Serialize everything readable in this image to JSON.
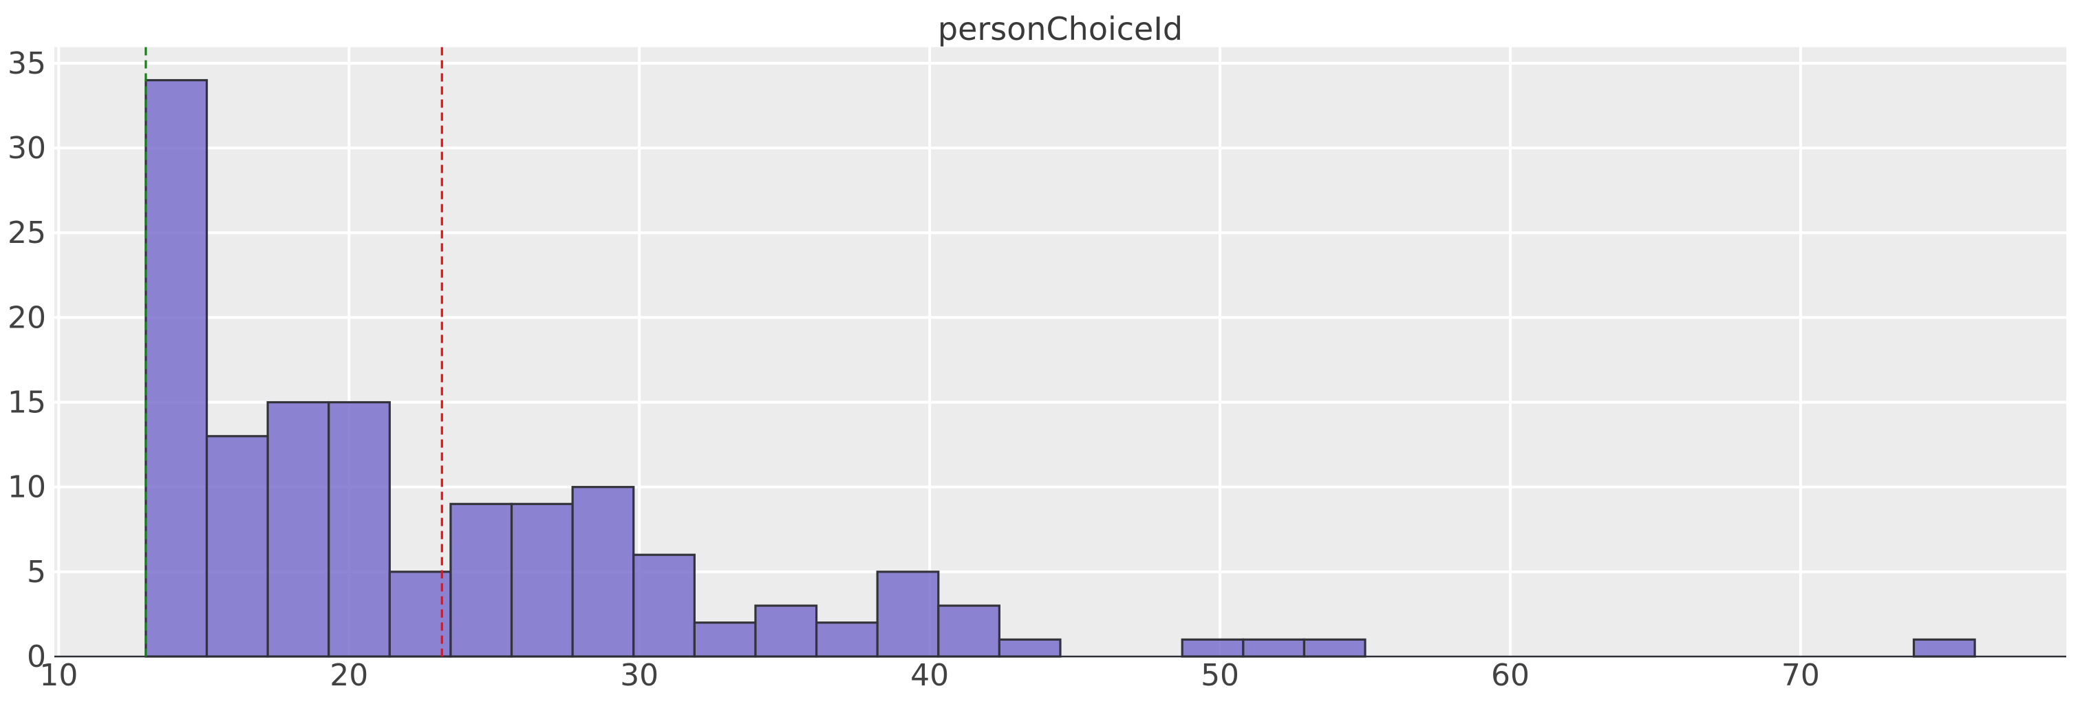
{
  "title": "personChoiceId",
  "chart_data": {
    "type": "bar",
    "subtype": "histogram",
    "title": "personChoiceId",
    "xlabel": "",
    "ylabel": "",
    "bin_start": 13,
    "bin_width": 2.1,
    "num_bins": 30,
    "bin_edges": [
      13.0,
      15.1,
      17.2,
      19.3,
      21.4,
      23.5,
      25.6,
      27.7,
      29.8,
      31.9,
      34.0,
      36.1,
      38.2,
      40.3,
      42.4,
      44.5,
      46.6,
      48.7,
      50.8,
      52.9,
      55.0,
      57.1,
      59.2,
      61.3,
      63.4,
      65.5,
      67.6,
      69.7,
      71.8,
      73.9,
      76.0
    ],
    "counts": [
      34,
      13,
      15,
      15,
      5,
      9,
      9,
      10,
      6,
      2,
      3,
      2,
      5,
      3,
      1,
      0,
      0,
      1,
      1,
      1,
      0,
      0,
      0,
      0,
      0,
      0,
      0,
      0,
      0,
      1
    ],
    "total_count": 136,
    "xlim": [
      9.85,
      79.15
    ],
    "ylim": [
      0,
      35.95
    ],
    "xticks": [
      10,
      20,
      30,
      40,
      50,
      60,
      70
    ],
    "yticks": [
      0,
      5,
      10,
      15,
      20,
      25,
      30,
      35
    ],
    "grid": true,
    "legend": null,
    "vlines": [
      {
        "name": "min-line",
        "x": 13.0,
        "color": "#1a7d1a",
        "style": "dashed"
      },
      {
        "name": "mean-line",
        "x": 23.2,
        "color": "#ee1111",
        "style": "dashed"
      }
    ],
    "colors": {
      "bar_fill": "#7b70ce",
      "bar_fill_opacity": 0.85,
      "bar_edge": "#33333b",
      "axes_background": "#ececec",
      "figure_background": "#ffffff",
      "gridline": "#ffffff",
      "spine": "#2e2e36",
      "tick_label": "#424242",
      "title": "#3a3a3a"
    }
  }
}
